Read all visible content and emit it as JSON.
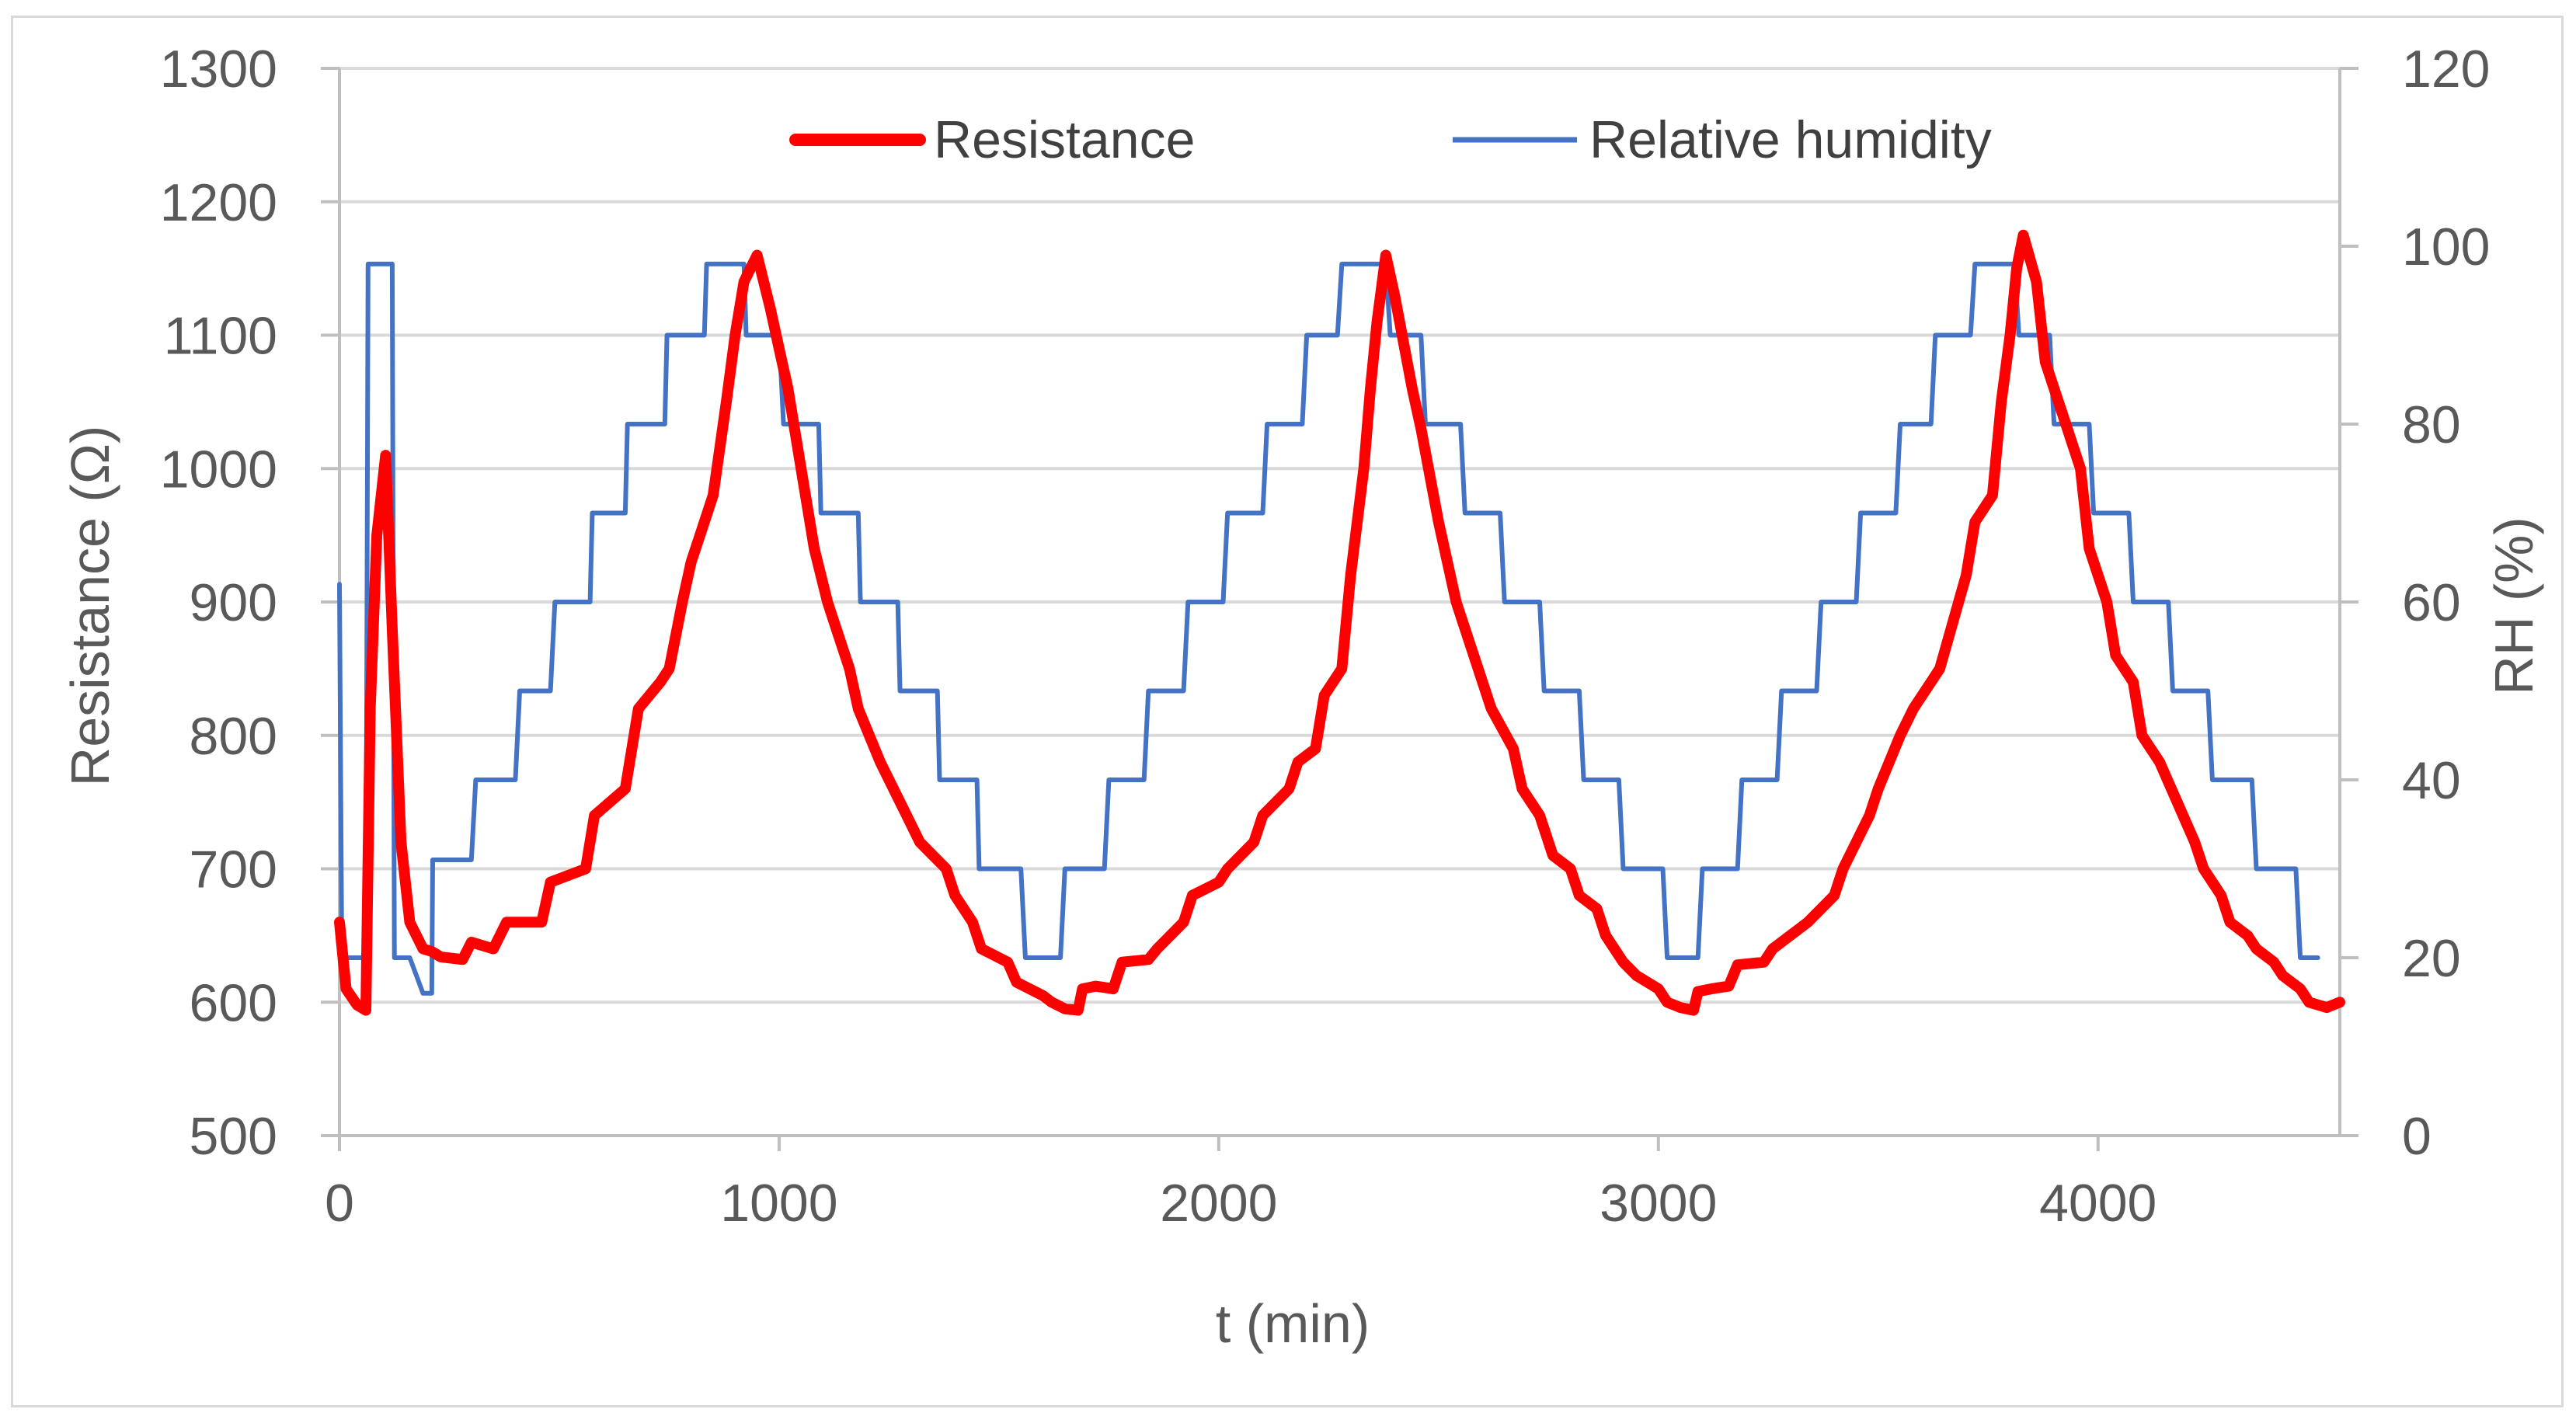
{
  "chart_data": {
    "type": "line",
    "title": "",
    "xlabel": "t (min)",
    "ylabel_left": "Resistance (Ω)",
    "ylabel_right": "RH (%)",
    "xlim": [
      0,
      4550
    ],
    "ylim_left": [
      500,
      1300
    ],
    "ylim_right": [
      0,
      120
    ],
    "x_ticks": [
      "0",
      "1000",
      "2000",
      "3000",
      "4000"
    ],
    "x_tick_values": [
      0,
      1000,
      2000,
      3000,
      4000
    ],
    "y_left_ticks": [
      "500",
      "600",
      "700",
      "800",
      "900",
      "1000",
      "1100",
      "1200",
      "1300"
    ],
    "y_left_tick_values": [
      500,
      600,
      700,
      800,
      900,
      1000,
      1100,
      1200,
      1300
    ],
    "y_right_ticks": [
      "0",
      "20",
      "40",
      "60",
      "80",
      "100",
      "120"
    ],
    "y_right_tick_values": [
      0,
      20,
      40,
      60,
      80,
      100,
      120
    ],
    "grid": true,
    "legend_position": "top",
    "series": [
      {
        "name": "Resistance",
        "axis": "left",
        "color": "#ff0000",
        "x": [
          0,
          15,
          40,
          60,
          70,
          85,
          105,
          120,
          140,
          160,
          190,
          210,
          230,
          280,
          300,
          350,
          380,
          460,
          480,
          560,
          580,
          650,
          680,
          730,
          750,
          780,
          800,
          830,
          850,
          880,
          900,
          920,
          935,
          950,
          980,
          1000,
          1020,
          1050,
          1080,
          1110,
          1130,
          1160,
          1180,
          1230,
          1260,
          1290,
          1320,
          1380,
          1400,
          1440,
          1460,
          1520,
          1540,
          1600,
          1620,
          1650,
          1680,
          1690,
          1720,
          1760,
          1780,
          1840,
          1860,
          1920,
          1940,
          2000,
          2020,
          2080,
          2100,
          2160,
          2180,
          2220,
          2240,
          2280,
          2300,
          2330,
          2345,
          2360,
          2380,
          2400,
          2440,
          2460,
          2500,
          2540,
          2560,
          2600,
          2620,
          2670,
          2690,
          2730,
          2760,
          2800,
          2820,
          2860,
          2880,
          2920,
          2950,
          3000,
          3020,
          3050,
          3080,
          3090,
          3120,
          3160,
          3180,
          3240,
          3260,
          3320,
          3340,
          3400,
          3420,
          3480,
          3500,
          3550,
          3580,
          3620,
          3640,
          3700,
          3720,
          3760,
          3780,
          3800,
          3815,
          3830,
          3860,
          3880,
          3920,
          3960,
          3980,
          4020,
          4040,
          4080,
          4100,
          4140,
          4180,
          4220,
          4240,
          4280,
          4300,
          4340,
          4360,
          4400,
          4420,
          4460,
          4480,
          4520,
          4550
        ],
        "values": [
          660,
          610,
          598,
          594,
          820,
          950,
          1010,
          880,
          720,
          660,
          640,
          638,
          634,
          632,
          645,
          640,
          660,
          660,
          690,
          700,
          740,
          760,
          820,
          840,
          850,
          900,
          930,
          960,
          980,
          1050,
          1100,
          1140,
          1150,
          1160,
          1120,
          1090,
          1060,
          1000,
          940,
          900,
          880,
          850,
          820,
          780,
          760,
          740,
          720,
          700,
          680,
          660,
          640,
          630,
          615,
          605,
          600,
          595,
          594,
          610,
          612,
          610,
          630,
          632,
          640,
          660,
          680,
          690,
          700,
          720,
          740,
          760,
          780,
          790,
          830,
          850,
          920,
          1000,
          1060,
          1110,
          1160,
          1130,
          1060,
          1030,
          960,
          900,
          880,
          840,
          820,
          790,
          760,
          740,
          710,
          700,
          680,
          670,
          650,
          630,
          620,
          610,
          600,
          596,
          594,
          608,
          610,
          612,
          628,
          630,
          640,
          655,
          660,
          680,
          700,
          740,
          760,
          800,
          820,
          840,
          850,
          920,
          960,
          980,
          1050,
          1100,
          1150,
          1175,
          1140,
          1080,
          1040,
          1000,
          940,
          900,
          860,
          840,
          800,
          780,
          750,
          720,
          700,
          680,
          660,
          650,
          640,
          630,
          620,
          610,
          600,
          596,
          600
        ]
      },
      {
        "name": "Relative humidity",
        "axis": "right",
        "color": "#4472c4",
        "x": [
          0,
          5,
          15,
          40,
          60,
          65,
          75,
          120,
          125,
          160,
          190,
          210,
          212,
          300,
          310,
          315,
          400,
          410,
          480,
          490,
          570,
          575,
          650,
          655,
          740,
          745,
          830,
          835,
          920,
          925,
          1000,
          1010,
          1090,
          1095,
          1180,
          1185,
          1270,
          1275,
          1360,
          1365,
          1450,
          1455,
          1550,
          1560,
          1640,
          1650,
          1740,
          1750,
          1830,
          1840,
          1920,
          1930,
          2010,
          2020,
          2100,
          2110,
          2190,
          2200,
          2270,
          2280,
          2380,
          2390,
          2460,
          2470,
          2550,
          2560,
          2640,
          2650,
          2730,
          2740,
          2820,
          2830,
          2910,
          2920,
          3010,
          3020,
          3090,
          3100,
          3180,
          3190,
          3270,
          3280,
          3360,
          3370,
          3450,
          3460,
          3540,
          3550,
          3620,
          3630,
          3710,
          3720,
          3810,
          3820,
          3890,
          3900,
          3980,
          3990,
          4070,
          4080,
          4160,
          4170,
          4250,
          4260,
          4350,
          4360,
          4450,
          4460,
          4500
        ],
        "values": [
          62,
          23,
          20,
          20,
          20,
          98,
          98,
          98,
          20,
          20,
          16,
          16,
          31,
          31,
          40,
          40,
          40,
          50,
          50,
          60,
          60,
          70,
          70,
          80,
          80,
          90,
          90,
          98,
          98,
          90,
          90,
          80,
          80,
          70,
          70,
          60,
          60,
          50,
          50,
          40,
          40,
          30,
          30,
          20,
          20,
          30,
          30,
          40,
          40,
          50,
          50,
          60,
          60,
          70,
          70,
          80,
          80,
          90,
          90,
          98,
          98,
          90,
          90,
          80,
          80,
          70,
          70,
          60,
          60,
          50,
          50,
          40,
          40,
          30,
          30,
          20,
          20,
          30,
          30,
          40,
          40,
          50,
          50,
          60,
          60,
          70,
          70,
          80,
          80,
          90,
          90,
          98,
          98,
          90,
          90,
          80,
          80,
          70,
          70,
          60,
          60,
          50,
          50,
          40,
          40,
          30,
          30,
          20,
          20
        ]
      }
    ]
  }
}
